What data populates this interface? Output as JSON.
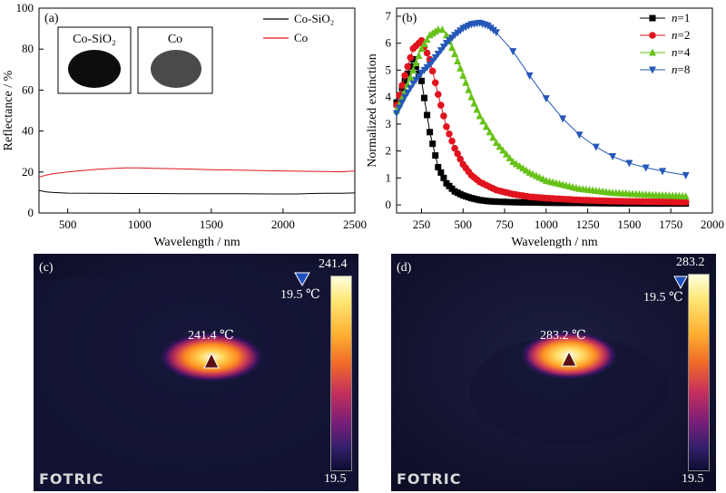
{
  "panels": {
    "a": "(a)",
    "b": "(b)",
    "c": "(c)",
    "d": "(d)"
  },
  "chart_data": [
    {
      "type": "line",
      "xlabel": "Wavelength / nm",
      "ylabel": "Reflectance / %",
      "xlim": [
        300,
        2500
      ],
      "ylim": [
        0,
        100
      ],
      "xticks": [
        500,
        1000,
        1500,
        2000,
        2500
      ],
      "yticks": [
        0,
        20,
        40,
        60,
        80,
        100
      ],
      "legend_position": "top-right",
      "series": [
        {
          "name": "Co-SiO₂",
          "color": "#000000",
          "x": [
            300,
            350,
            400,
            500,
            700,
            900,
            1100,
            1300,
            1500,
            1700,
            1900,
            2100,
            2200,
            2300,
            2400,
            2500
          ],
          "y": [
            11,
            10.3,
            10,
            9.7,
            9.6,
            9.5,
            9.5,
            9.4,
            9.4,
            9.4,
            9.3,
            9.3,
            9.5,
            9.6,
            9.6,
            9.8
          ]
        },
        {
          "name": "Co",
          "color": "#e0141e",
          "x": [
            300,
            350,
            400,
            500,
            600,
            700,
            800,
            900,
            1000,
            1100,
            1300,
            1500,
            1700,
            1900,
            2100,
            2200,
            2300,
            2400,
            2500
          ],
          "y": [
            17.5,
            18.5,
            19.2,
            20,
            20.7,
            21.3,
            21.7,
            22,
            22,
            21.8,
            21.5,
            21.1,
            20.9,
            20.6,
            20.4,
            20.3,
            20.2,
            20.1,
            20.5
          ]
        }
      ],
      "insets": [
        {
          "label": "Co-SiO₂",
          "kind": "dark"
        },
        {
          "label": "Co",
          "kind": "grey"
        }
      ]
    },
    {
      "type": "line",
      "xlabel": "Wavelength / nm",
      "ylabel": "Normalized extinction",
      "xlim": [
        100,
        2000
      ],
      "ylim": [
        -0.3,
        7.3
      ],
      "xticks": [
        250,
        500,
        750,
        1000,
        1250,
        1500,
        1750,
        2000
      ],
      "yticks": [
        0,
        1,
        2,
        3,
        4,
        5,
        6,
        7
      ],
      "legend_position": "top-right",
      "series": [
        {
          "name": "n=1",
          "name_var": "n",
          "name_val": "=1",
          "color": "#000000",
          "marker": "square",
          "x": [
            100,
            150,
            200,
            250,
            300,
            350,
            400,
            450,
            500,
            550,
            600,
            650,
            700,
            800,
            900,
            1000,
            1200,
            1400,
            1600,
            1840
          ],
          "y": [
            3.8,
            4.6,
            5.4,
            4.6,
            2.7,
            1.4,
            0.8,
            0.5,
            0.35,
            0.25,
            0.18,
            0.14,
            0.12,
            0.1,
            0.09,
            0.08,
            0.07,
            0.06,
            0.05,
            0.05
          ]
        },
        {
          "name": "n=2",
          "name_var": "n",
          "name_val": "=2",
          "color": "#e0141e",
          "marker": "circle",
          "x": [
            100,
            150,
            200,
            250,
            300,
            350,
            400,
            450,
            500,
            550,
            600,
            700,
            800,
            900,
            1000,
            1200,
            1400,
            1600,
            1840
          ],
          "y": [
            3.7,
            4.8,
            5.8,
            6.1,
            5.4,
            4.1,
            2.9,
            2.1,
            1.5,
            1.1,
            0.85,
            0.55,
            0.4,
            0.3,
            0.25,
            0.18,
            0.14,
            0.12,
            0.1
          ]
        },
        {
          "name": "n=4",
          "name_var": "n",
          "name_val": "=4",
          "color": "#66c218",
          "marker": "triangle-up",
          "x": [
            100,
            150,
            200,
            250,
            300,
            350,
            375,
            400,
            450,
            500,
            550,
            600,
            700,
            800,
            900,
            1000,
            1200,
            1400,
            1600,
            1840
          ],
          "y": [
            3.5,
            4.2,
            5.0,
            5.8,
            6.3,
            6.5,
            6.5,
            6.3,
            5.6,
            4.8,
            4.0,
            3.3,
            2.3,
            1.6,
            1.2,
            0.9,
            0.6,
            0.45,
            0.38,
            0.32
          ]
        },
        {
          "name": "n=8",
          "name_var": "n",
          "name_val": "=8",
          "color": "#2457b8",
          "marker": "triangle-down",
          "x": [
            100,
            150,
            200,
            250,
            300,
            350,
            400,
            450,
            500,
            550,
            600,
            650,
            700,
            800,
            900,
            1000,
            1100,
            1200,
            1300,
            1400,
            1500,
            1600,
            1700,
            1840
          ],
          "y": [
            3.4,
            4.0,
            4.5,
            4.9,
            5.2,
            5.6,
            6.0,
            6.3,
            6.55,
            6.7,
            6.75,
            6.65,
            6.4,
            5.7,
            4.8,
            3.95,
            3.2,
            2.6,
            2.15,
            1.8,
            1.55,
            1.38,
            1.25,
            1.1
          ]
        }
      ]
    }
  ],
  "thermal": [
    {
      "panel": "(c)",
      "hotspot_label": "241.4 ℃",
      "min_label": "19.5 ℃",
      "bar_max": "241.4",
      "bar_min": "19.5",
      "logo": "FOTRIC"
    },
    {
      "panel": "(d)",
      "hotspot_label": "283.2 ℃",
      "min_label": "19.5 ℃",
      "bar_max": "283.2",
      "bar_min": "19.5",
      "logo": "FOTRIC"
    }
  ]
}
